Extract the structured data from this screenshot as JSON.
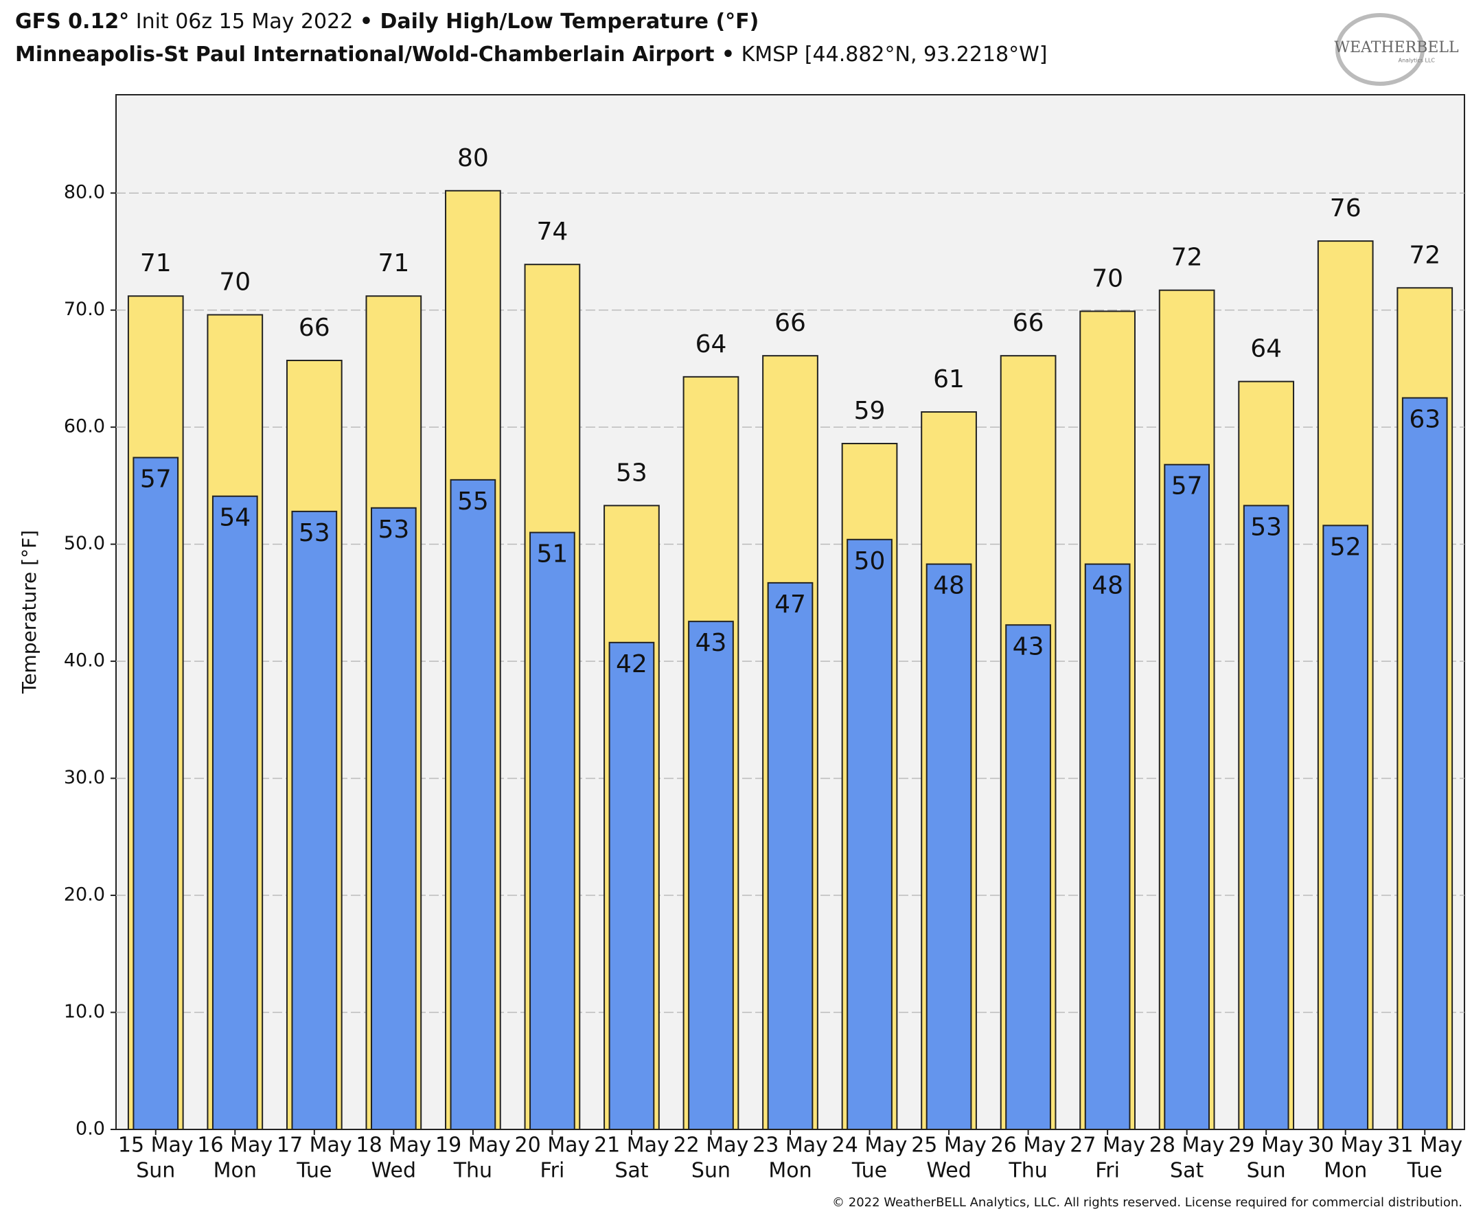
{
  "chart_data": {
    "type": "bar",
    "title": {
      "model": "GFS 0.12°",
      "init": " Init 06z 15 May 2022 ",
      "bullet": "•",
      "product": " Daily High/Low Temperature (°F)"
    },
    "subtitle": {
      "station": "Minneapolis-St Paul International/Wold-Chamberlain Airport",
      "bullet": " •",
      "location": " KMSP [44.882°N, 93.2218°W]"
    },
    "logo": {
      "name": "WEATHERBELL",
      "sub": "Analytics LLC"
    },
    "y_label": "Temperature [°F]",
    "footer": "© 2022 WeatherBELL Analytics, LLC. All rights reserved. License required for commercial distribution.",
    "categories": [
      "15 May",
      "16 May",
      "17 May",
      "18 May",
      "19 May",
      "20 May",
      "21 May",
      "22 May",
      "23 May",
      "24 May",
      "25 May",
      "26 May",
      "27 May",
      "28 May",
      "29 May",
      "30 May",
      "31 May"
    ],
    "weekdays": [
      "Sun",
      "Mon",
      "Tue",
      "Wed",
      "Thu",
      "Fri",
      "Sat",
      "Sun",
      "Mon",
      "Tue",
      "Wed",
      "Thu",
      "Fri",
      "Sat",
      "Sun",
      "Mon",
      "Tue"
    ],
    "series": [
      {
        "color": "#fbe47a",
        "values": [
          71.2,
          69.6,
          65.7,
          71.2,
          80.2,
          73.9,
          53.3,
          64.3,
          66.1,
          58.6,
          61.3,
          66.1,
          69.9,
          71.7,
          63.9,
          75.9,
          71.9
        ],
        "value_labels": [
          "71",
          "70",
          "66",
          "71",
          "80",
          "74",
          "53",
          "64",
          "66",
          "59",
          "61",
          "66",
          "70",
          "72",
          "64",
          "76",
          "72"
        ]
      },
      {
        "color": "#6495ed",
        "values": [
          57.4,
          54.1,
          52.8,
          53.1,
          55.5,
          51.0,
          41.6,
          43.4,
          46.7,
          50.4,
          48.3,
          43.1,
          48.3,
          56.8,
          53.3,
          51.6,
          62.5
        ],
        "value_labels": [
          "57",
          "54",
          "53",
          "53",
          "55",
          "51",
          "42",
          "43",
          "47",
          "50",
          "48",
          "43",
          "48",
          "57",
          "53",
          "52",
          "63"
        ]
      }
    ],
    "ylim": [
      0,
      88.4
    ],
    "yticks": [
      {
        "value": 0,
        "label": "0.0"
      },
      {
        "value": 10,
        "label": "10.0"
      },
      {
        "value": 20,
        "label": "20.0"
      },
      {
        "value": 30,
        "label": "30.0"
      },
      {
        "value": 40,
        "label": "40.0"
      },
      {
        "value": 50,
        "label": "50.0"
      },
      {
        "value": 60,
        "label": "60.0"
      },
      {
        "value": 70,
        "label": "70.0"
      },
      {
        "value": 80,
        "label": "80.0"
      }
    ],
    "grid": true
  }
}
